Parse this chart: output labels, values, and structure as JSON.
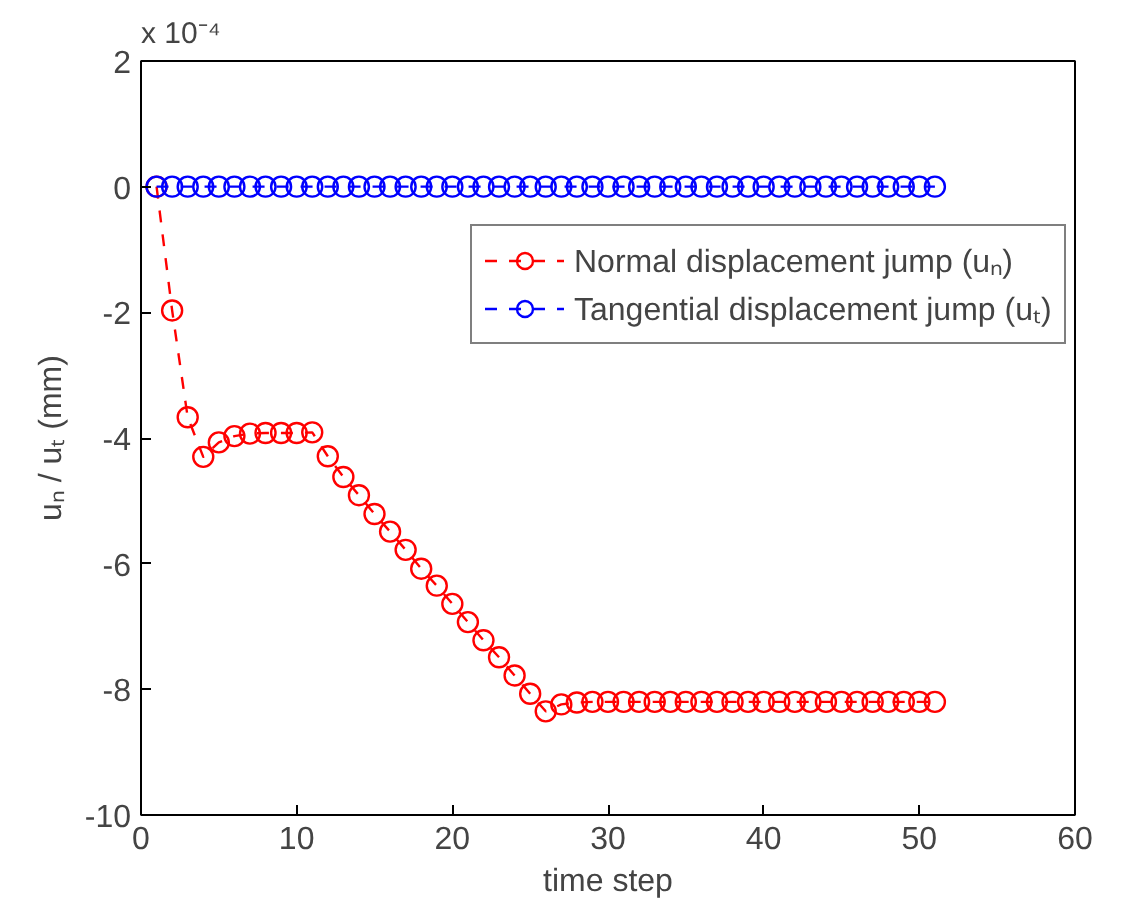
{
  "chart_data": {
    "type": "line",
    "xlabel": "time step",
    "ylabel": "uₙ / uₜ (mm)",
    "annotations": [
      "x 10⁻⁴"
    ],
    "x": [
      1,
      2,
      3,
      4,
      5,
      6,
      7,
      8,
      9,
      10,
      11,
      12,
      13,
      14,
      15,
      16,
      17,
      18,
      19,
      20,
      21,
      22,
      23,
      24,
      25,
      26,
      27,
      28,
      29,
      30,
      31,
      32,
      33,
      34,
      35,
      36,
      37,
      38,
      39,
      40,
      41,
      42,
      43,
      44,
      45,
      46,
      47,
      48,
      49,
      50,
      51
    ],
    "series": [
      {
        "name": "Normal displacement jump (uₙ)",
        "color": "#ff0000",
        "values": [
          0,
          -1.97,
          -3.67,
          -4.3,
          -4.07,
          -3.97,
          -3.93,
          -3.92,
          -3.92,
          -3.92,
          -3.91,
          -4.29,
          -4.62,
          -4.91,
          -5.21,
          -5.49,
          -5.78,
          -6.08,
          -6.35,
          -6.64,
          -6.93,
          -7.22,
          -7.49,
          -7.78,
          -8.07,
          -8.35,
          -8.24,
          -8.21,
          -8.2,
          -8.2,
          -8.2,
          -8.2,
          -8.2,
          -8.2,
          -8.2,
          -8.2,
          -8.2,
          -8.2,
          -8.2,
          -8.2,
          -8.2,
          -8.2,
          -8.2,
          -8.2,
          -8.2,
          -8.2,
          -8.2,
          -8.2,
          -8.2,
          -8.2,
          -8.2
        ]
      },
      {
        "name": "Tangential displacement jump (uₜ)",
        "color": "#0000ff",
        "values": [
          0,
          0,
          0,
          0,
          0,
          0,
          0,
          0,
          0,
          0,
          0,
          0,
          0,
          0,
          0,
          0,
          0,
          0,
          0,
          0,
          0,
          0,
          0,
          0,
          0,
          0,
          0,
          0,
          0,
          0,
          0,
          0,
          0,
          0,
          0,
          0,
          0,
          0,
          0,
          0,
          0,
          0,
          0,
          0,
          0,
          0,
          0,
          0,
          0,
          0,
          0
        ]
      }
    ],
    "xlim": [
      0,
      60
    ],
    "xticks": [
      0,
      10,
      20,
      30,
      40,
      50,
      60
    ],
    "ylim": [
      -10,
      2
    ],
    "yticks": [
      -10,
      -8,
      -6,
      -4,
      -2,
      0,
      2
    ],
    "grid": false,
    "legend": "top right",
    "marker": "circle",
    "line_style": "dashed"
  }
}
